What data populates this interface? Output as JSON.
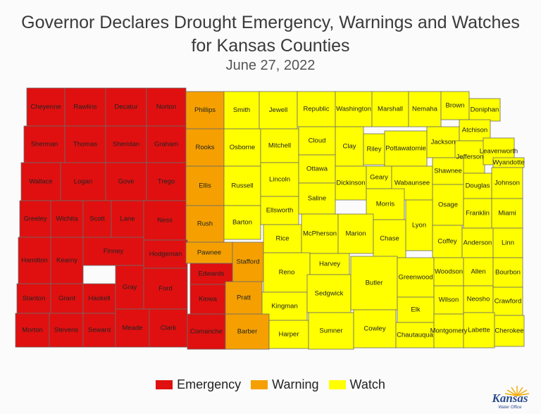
{
  "title_line1": "Governor Declares Drought Emergency, Warnings and Watches",
  "title_line2": "for Kansas Counties",
  "subtitle": "June 27, 2022",
  "categories": {
    "emergency": {
      "label": "Emergency",
      "color": "#e01010"
    },
    "warning": {
      "label": "Warning",
      "color": "#f5a000"
    },
    "watch": {
      "label": "Watch",
      "color": "#ffff00"
    }
  },
  "counties": [
    {
      "name": "Cheyenne",
      "status": "emergency"
    },
    {
      "name": "Rawlins",
      "status": "emergency"
    },
    {
      "name": "Decatur",
      "status": "emergency"
    },
    {
      "name": "Norton",
      "status": "emergency"
    },
    {
      "name": "Phillips",
      "status": "warning"
    },
    {
      "name": "Smith",
      "status": "watch"
    },
    {
      "name": "Jewell",
      "status": "watch"
    },
    {
      "name": "Republic",
      "status": "watch"
    },
    {
      "name": "Washington",
      "status": "watch"
    },
    {
      "name": "Marshall",
      "status": "watch"
    },
    {
      "name": "Nemaha",
      "status": "watch"
    },
    {
      "name": "Brown",
      "status": "watch"
    },
    {
      "name": "Doniphan",
      "status": "watch"
    },
    {
      "name": "Sherman",
      "status": "emergency"
    },
    {
      "name": "Thomas",
      "status": "emergency"
    },
    {
      "name": "Sheridan",
      "status": "emergency"
    },
    {
      "name": "Graham",
      "status": "emergency"
    },
    {
      "name": "Rooks",
      "status": "warning"
    },
    {
      "name": "Osborne",
      "status": "watch"
    },
    {
      "name": "Mitchell",
      "status": "watch"
    },
    {
      "name": "Cloud",
      "status": "watch"
    },
    {
      "name": "Clay",
      "status": "watch"
    },
    {
      "name": "Riley",
      "status": "watch"
    },
    {
      "name": "Pottawatomie",
      "status": "watch"
    },
    {
      "name": "Jackson",
      "status": "watch"
    },
    {
      "name": "Atchison",
      "status": "watch"
    },
    {
      "name": "Jefferson",
      "status": "watch"
    },
    {
      "name": "Leavenworth",
      "status": "watch"
    },
    {
      "name": "Wyandotte",
      "status": "watch"
    },
    {
      "name": "Wallace",
      "status": "emergency"
    },
    {
      "name": "Logan",
      "status": "emergency"
    },
    {
      "name": "Gove",
      "status": "emergency"
    },
    {
      "name": "Trego",
      "status": "emergency"
    },
    {
      "name": "Ellis",
      "status": "warning"
    },
    {
      "name": "Russell",
      "status": "watch"
    },
    {
      "name": "Lincoln",
      "status": "watch"
    },
    {
      "name": "Ottawa",
      "status": "watch"
    },
    {
      "name": "Dickinson",
      "status": "watch"
    },
    {
      "name": "Geary",
      "status": "watch"
    },
    {
      "name": "Wabaunsee",
      "status": "watch"
    },
    {
      "name": "Shawnee",
      "status": "watch"
    },
    {
      "name": "Douglas",
      "status": "watch"
    },
    {
      "name": "Johnson",
      "status": "watch"
    },
    {
      "name": "Greeley",
      "status": "emergency"
    },
    {
      "name": "Wichita",
      "status": "emergency"
    },
    {
      "name": "Scott",
      "status": "emergency"
    },
    {
      "name": "Lane",
      "status": "emergency"
    },
    {
      "name": "Ness",
      "status": "emergency"
    },
    {
      "name": "Rush",
      "status": "warning"
    },
    {
      "name": "Barton",
      "status": "watch"
    },
    {
      "name": "Ellsworth",
      "status": "watch"
    },
    {
      "name": "Saline",
      "status": "watch"
    },
    {
      "name": "Morris",
      "status": "watch"
    },
    {
      "name": "Osage",
      "status": "watch"
    },
    {
      "name": "Franklin",
      "status": "watch"
    },
    {
      "name": "Miami",
      "status": "watch"
    },
    {
      "name": "Hamilton",
      "status": "emergency"
    },
    {
      "name": "Kearny",
      "status": "emergency"
    },
    {
      "name": "Finney",
      "status": "emergency"
    },
    {
      "name": "Hodgeman",
      "status": "emergency"
    },
    {
      "name": "Pawnee",
      "status": "warning"
    },
    {
      "name": "Stafford",
      "status": "warning"
    },
    {
      "name": "Rice",
      "status": "watch"
    },
    {
      "name": "McPherson",
      "status": "watch"
    },
    {
      "name": "Marion",
      "status": "watch"
    },
    {
      "name": "Chase",
      "status": "watch"
    },
    {
      "name": "Lyon",
      "status": "watch"
    },
    {
      "name": "Coffey",
      "status": "watch"
    },
    {
      "name": "Anderson",
      "status": "watch"
    },
    {
      "name": "Linn",
      "status": "watch"
    },
    {
      "name": "Edwards",
      "status": "emergency"
    },
    {
      "name": "Reno",
      "status": "watch"
    },
    {
      "name": "Harvey",
      "status": "watch"
    },
    {
      "name": "Stanton",
      "status": "emergency"
    },
    {
      "name": "Grant",
      "status": "emergency"
    },
    {
      "name": "Haskell",
      "status": "emergency"
    },
    {
      "name": "Gray",
      "status": "emergency"
    },
    {
      "name": "Ford",
      "status": "emergency"
    },
    {
      "name": "Kiowa",
      "status": "emergency"
    },
    {
      "name": "Pratt",
      "status": "warning"
    },
    {
      "name": "Kingman",
      "status": "watch"
    },
    {
      "name": "Sedgwick",
      "status": "watch"
    },
    {
      "name": "Butler",
      "status": "watch"
    },
    {
      "name": "Greenwood",
      "status": "watch"
    },
    {
      "name": "Woodson",
      "status": "watch"
    },
    {
      "name": "Allen",
      "status": "watch"
    },
    {
      "name": "Bourbon",
      "status": "watch"
    },
    {
      "name": "Wilson",
      "status": "watch"
    },
    {
      "name": "Neosho",
      "status": "watch"
    },
    {
      "name": "Crawford",
      "status": "watch"
    },
    {
      "name": "Elk",
      "status": "watch"
    },
    {
      "name": "Morton",
      "status": "emergency"
    },
    {
      "name": "Stevens",
      "status": "emergency"
    },
    {
      "name": "Seward",
      "status": "emergency"
    },
    {
      "name": "Meade",
      "status": "emergency"
    },
    {
      "name": "Clark",
      "status": "emergency"
    },
    {
      "name": "Comanche",
      "status": "emergency"
    },
    {
      "name": "Barber",
      "status": "warning"
    },
    {
      "name": "Harper",
      "status": "watch"
    },
    {
      "name": "Sumner",
      "status": "watch"
    },
    {
      "name": "Cowley",
      "status": "watch"
    },
    {
      "name": "Chautauqua",
      "status": "watch"
    },
    {
      "name": "Montgomery",
      "status": "watch"
    },
    {
      "name": "Labette",
      "status": "watch"
    },
    {
      "name": "Cherokee",
      "status": "watch"
    }
  ],
  "logo": {
    "text": "Kansas",
    "subtext": "Water Office"
  }
}
